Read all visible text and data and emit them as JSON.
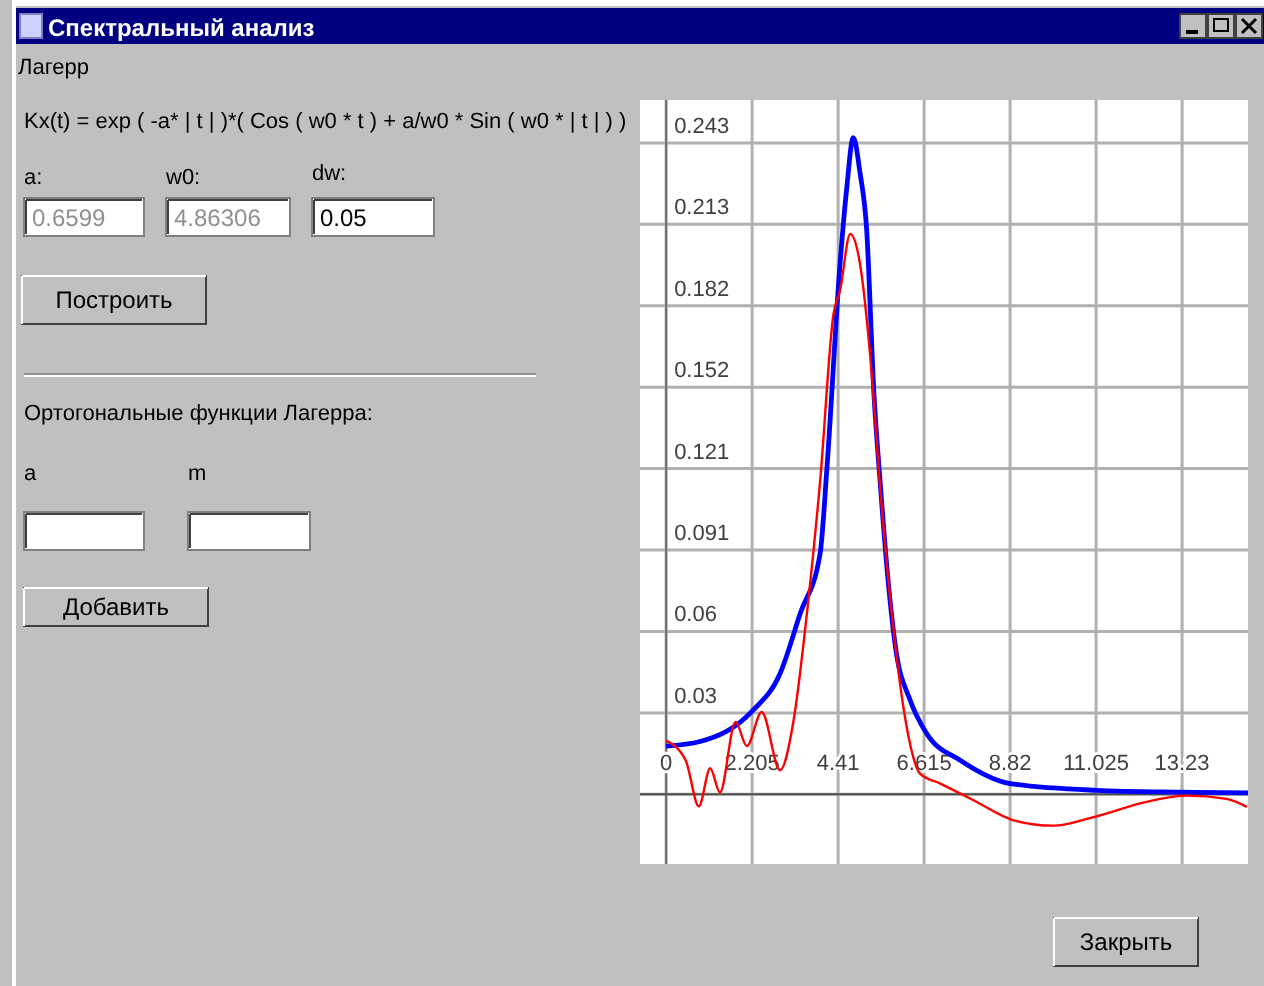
{
  "chart_data": [
    {
      "type": "other",
      "title": "Спектральный анализ",
      "annotations": [
        "Лагерр",
        "Kx(t) = exp ( -a* | t | )*( Cos ( w0 * t ) + a/w0 * Sin ( w0 * | t | ) )",
        "a:",
        "w0:",
        "dw:",
        "0.6599",
        "4.86306",
        "0.05",
        "Построить",
        "Ортогональные функции Лагерра:",
        "a",
        "m",
        "Добавить",
        "Закрыть"
      ]
    },
    {
      "type": "line",
      "xlim": [
        -0.67,
        14.92
      ],
      "ylim": [
        -0.026,
        0.259
      ],
      "xticks": [
        0,
        2.205,
        4.41,
        6.615,
        8.82,
        11.025,
        13.23
      ],
      "yticks": [
        {
          "value": 0,
          "label": null
        },
        {
          "value": 0.030375,
          "label": "0.03"
        },
        {
          "value": 0.06075,
          "label": "0.06"
        },
        {
          "value": 0.091125,
          "label": "0.091"
        },
        {
          "value": 0.1215,
          "label": "0.121"
        },
        {
          "value": 0.151875,
          "label": "0.152"
        },
        {
          "value": 0.18225,
          "label": "0.182"
        },
        {
          "value": 0.212625,
          "label": "0.213"
        },
        0.243
      ],
      "grid": true,
      "marker": "none",
      "line_style": "solid",
      "series": [
        {
          "color": "#0000ff",
          "x": [
            0,
            0.87,
            2.205,
            2.92,
            3.44,
            3.95,
            4.12,
            4.46,
            4.63,
            4.8,
            4.97,
            5.14,
            5.33,
            5.49,
            5.69,
            5.88,
            6.26,
            6.68,
            7.54,
            8.82,
            11.03,
            13.23,
            14.92
          ],
          "values": [
            0.018,
            0.0197,
            0.031,
            0.045,
            0.0675,
            0.09,
            0.121,
            0.198,
            0.226,
            0.245,
            0.232,
            0.211,
            0.149,
            0.116,
            0.08,
            0.055,
            0.035,
            0.0227,
            0.0127,
            0.004,
            0.0015,
            0.0008,
            0.0005
          ]
        },
        {
          "color": "#ff0000",
          "x": [
            0,
            0.5,
            0.84,
            1.13,
            1.38,
            1.78,
            2.07,
            2.45,
            2.92,
            3.27,
            3.61,
            3.95,
            4.29,
            4.46,
            4.72,
            4.97,
            5.23,
            5.49,
            5.88,
            6.17,
            6.51,
            7.03,
            7.88,
            8.91,
            9.93,
            10.96,
            12.32,
            13.35,
            14.37,
            14.89
          ],
          "values": [
            0.02,
            0.0127,
            -0.0045,
            0.0097,
            0.0007,
            0.027,
            0.018,
            0.0307,
            0.009,
            0.0277,
            0.0675,
            0.117,
            0.179,
            0.188,
            0.209,
            0.198,
            0.164,
            0.114,
            0.055,
            0.025,
            0.0077,
            0.004,
            -0.0022,
            -0.0097,
            -0.0117,
            -0.0085,
            -0.0028,
            -0.0005,
            -0.0017,
            -0.0047
          ]
        }
      ]
    }
  ]
}
